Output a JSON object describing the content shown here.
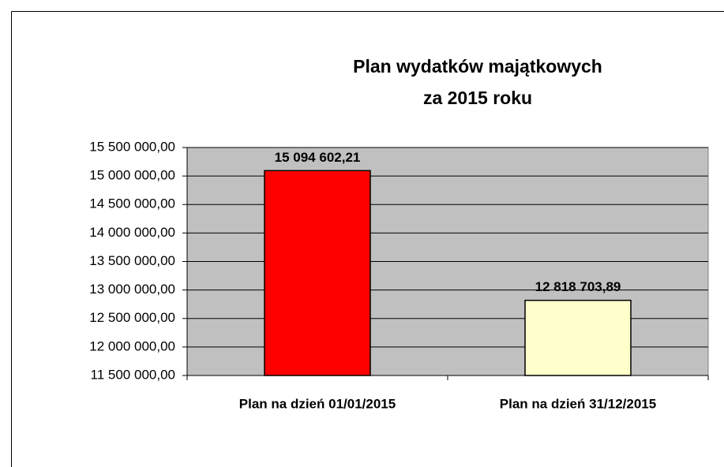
{
  "chart_data": {
    "type": "bar",
    "title": [
      "Plan wydatków majątkowych",
      "za 2015 roku"
    ],
    "categories": [
      "Plan na dzień 01/01/2015",
      "Plan na dzień 31/12/2015"
    ],
    "values": [
      15094602.21,
      12818703.89
    ],
    "value_labels": [
      "15 094 602,21",
      "12 818 703,89"
    ],
    "colors": [
      "#ff0000",
      "#ffffcc"
    ],
    "ylim": [
      11500000,
      15500000
    ],
    "yticks": [
      {
        "value": 11500000,
        "label": "11 500 000,00"
      },
      {
        "value": 12000000,
        "label": "12 000 000,00"
      },
      {
        "value": 12500000,
        "label": "12 500 000,00"
      },
      {
        "value": 13000000,
        "label": "13 000 000,00"
      },
      {
        "value": 13500000,
        "label": "13 500 000,00"
      },
      {
        "value": 14000000,
        "label": "14 000 000,00"
      },
      {
        "value": 14500000,
        "label": "14 500 000,00"
      },
      {
        "value": 15000000,
        "label": "15 000 000,00"
      },
      {
        "value": 15500000,
        "label": "15 500 000,00"
      }
    ],
    "grid": true
  }
}
